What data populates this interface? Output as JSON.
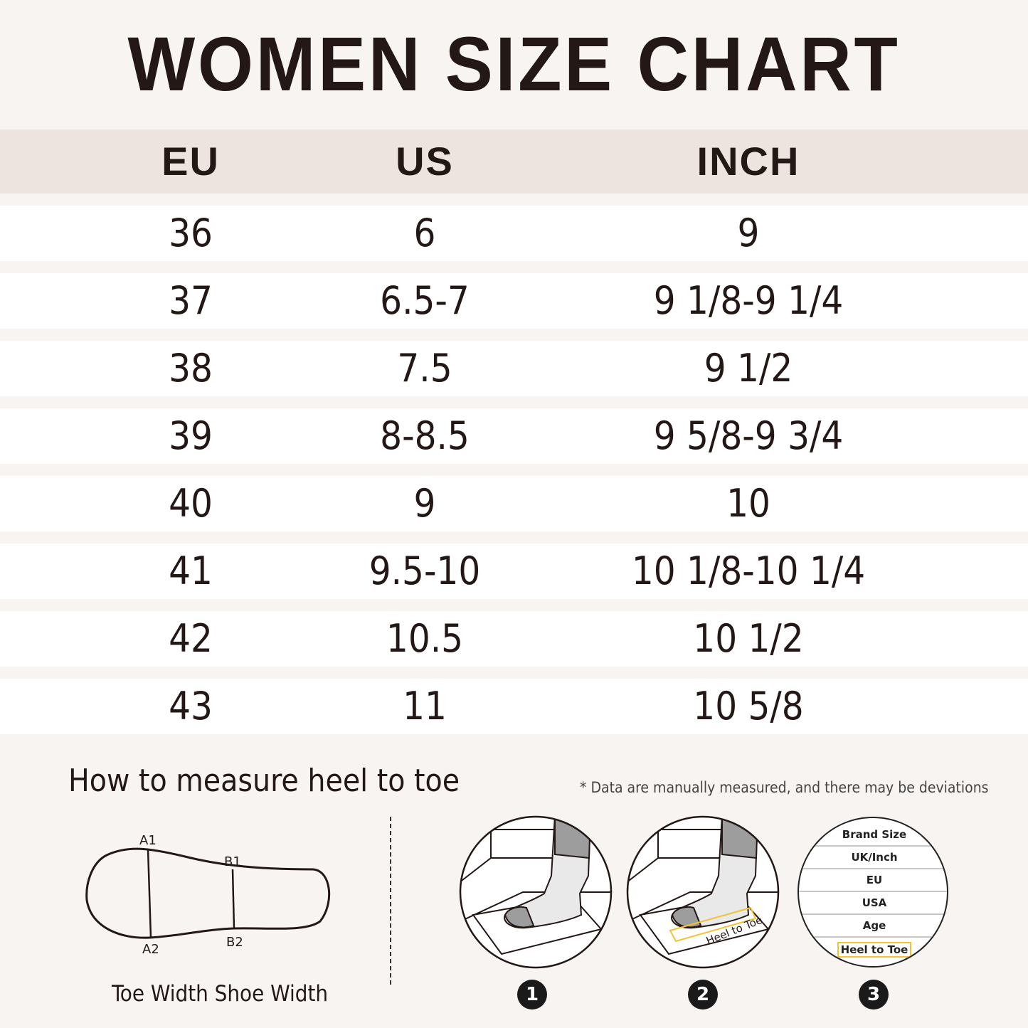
{
  "title": "WOMEN SIZE CHART",
  "table": {
    "headers": [
      "EU",
      "US",
      "INCH"
    ],
    "rows": [
      [
        "36",
        "6",
        "9"
      ],
      [
        "37",
        "6.5-7",
        "9 1/8-9 1/4"
      ],
      [
        "38",
        "7.5",
        "9 1/2"
      ],
      [
        "39",
        "8-8.5",
        "9 5/8-9 3/4"
      ],
      [
        "40",
        "9",
        "10"
      ],
      [
        "41",
        "9.5-10",
        "10 1/8-10 1/4"
      ],
      [
        "42",
        "10.5",
        "10 1/2"
      ],
      [
        "43",
        "11",
        "10 5/8"
      ]
    ]
  },
  "measure": {
    "heading": "How to measure heel to toe",
    "note": "* Data are manually measured, and there may be deviations",
    "sole_labels": {
      "a1": "A1",
      "a2": "A2",
      "b1": "B1",
      "b2": "B2"
    },
    "width_caption": "Toe Width Shoe Width",
    "tape_text": "Heel to Toe",
    "label_lines": [
      "Brand Size",
      "UK/Inch",
      "EU",
      "USA",
      "Age",
      "Heel to Toe"
    ],
    "steps": [
      "1",
      "2",
      "3"
    ]
  },
  "colors": {
    "background": "#f8f4f1",
    "header_band": "#ede3df",
    "text": "#231815",
    "highlight": "#f2c230"
  }
}
